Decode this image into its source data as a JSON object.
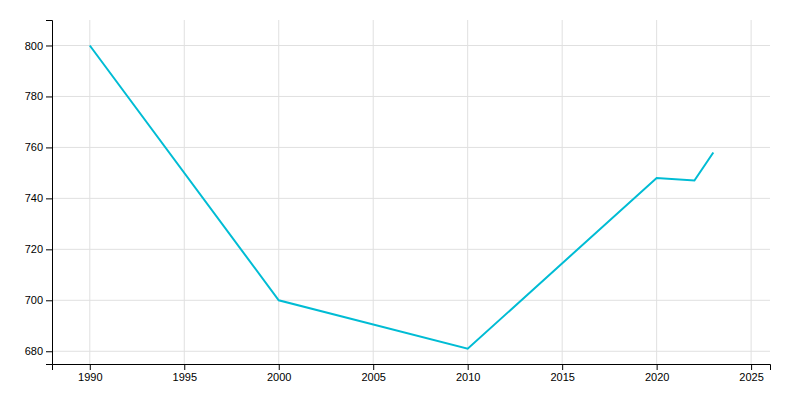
{
  "chart_data": {
    "type": "line",
    "x": [
      1990,
      2000,
      2010,
      2020,
      2022,
      2023
    ],
    "values": [
      800,
      700,
      681,
      748,
      747,
      758
    ],
    "color": "#00bcd4",
    "xlim": [
      1988,
      2026
    ],
    "ylim": [
      675,
      810
    ],
    "xticks": [
      1990,
      1995,
      2000,
      2005,
      2010,
      2015,
      2020,
      2025
    ],
    "yticks": [
      680,
      700,
      720,
      740,
      760,
      780,
      800
    ],
    "grid": true
  }
}
